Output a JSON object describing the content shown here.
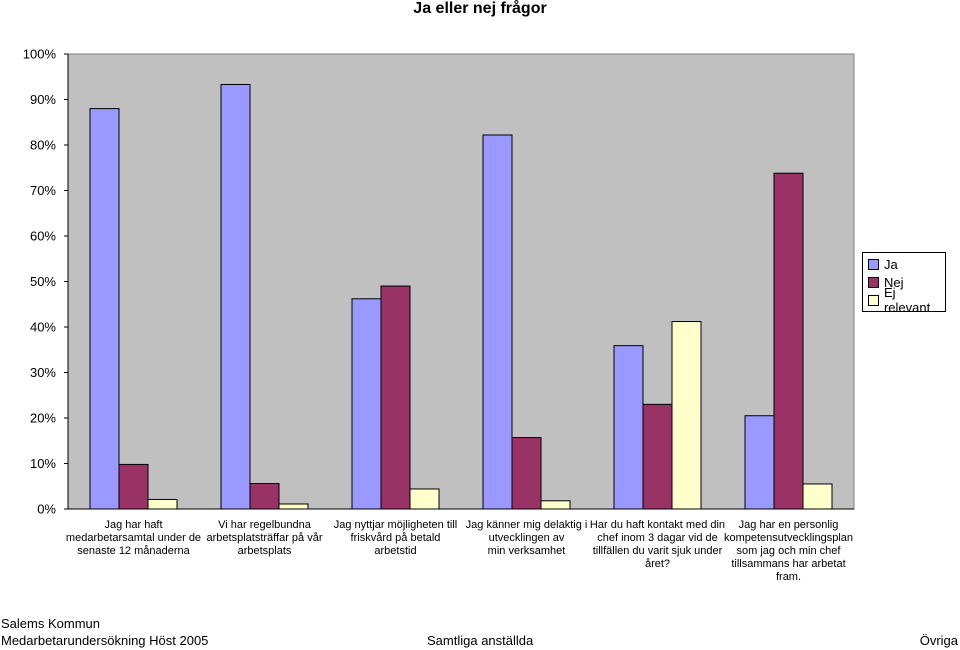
{
  "chart_data": {
    "type": "bar",
    "title": "Ja eller nej frågor",
    "ylim": [
      0,
      100
    ],
    "yticks": [
      "0%",
      "10%",
      "20%",
      "30%",
      "40%",
      "50%",
      "60%",
      "70%",
      "80%",
      "90%",
      "100%"
    ],
    "categories": [
      "Jag har haft medarbetarsamtal under de senaste 12 månaderna",
      "Vi har regelbundna arbetsplatsträffar på vår arbetsplats",
      "Jag nyttjar möjligheten till friskvård på betald arbetstid",
      "Jag känner mig delaktig i utvecklingen av min verksamhet",
      "Har du haft kontakt med din chef inom 3 dagar vid de tillfällen du varit sjuk under året?",
      "Jag har en personlig kompetensutvecklingsplan som jag och min chef tillsammans har arbetat fram."
    ],
    "category_lines": [
      [
        "Jag har haft",
        "medarbetarsamtal under de",
        "senaste 12 månaderna"
      ],
      [
        "Vi har regelbundna",
        "arbetsplatsträffar på vår",
        "arbetsplats"
      ],
      [
        "Jag nyttjar möjligheten till",
        "friskvård på betald",
        "arbetstid"
      ],
      [
        "Jag känner mig delaktig i",
        "utvecklingen av",
        "min verksamhet"
      ],
      [
        "Har du haft kontakt med din",
        "chef inom 3 dagar vid de",
        "tillfällen du varit sjuk under",
        "året?"
      ],
      [
        "Jag har en personlig",
        "kompetensutvecklingsplan",
        "som jag och min chef",
        "tillsammans har arbetat",
        "fram."
      ]
    ],
    "series": [
      {
        "name": "Ja",
        "color": "#9999ff",
        "values": [
          88,
          93.3,
          46.2,
          82.2,
          35.9,
          20.5
        ]
      },
      {
        "name": "Nej",
        "color": "#993366",
        "values": [
          9.8,
          5.6,
          49,
          15.7,
          23,
          73.8
        ]
      },
      {
        "name": "Ej relevant",
        "color": "#ffffcc",
        "values": [
          2.1,
          1.1,
          4.4,
          1.8,
          41.2,
          5.5
        ]
      }
    ],
    "plot_background": "#c0c0c0",
    "grid": false,
    "legend_position": "right"
  },
  "footer": {
    "org": "Salems Kommun",
    "survey": "Medarbetarundersökning Höst 2005",
    "group": "Samtliga anställda",
    "category": "Övriga"
  }
}
